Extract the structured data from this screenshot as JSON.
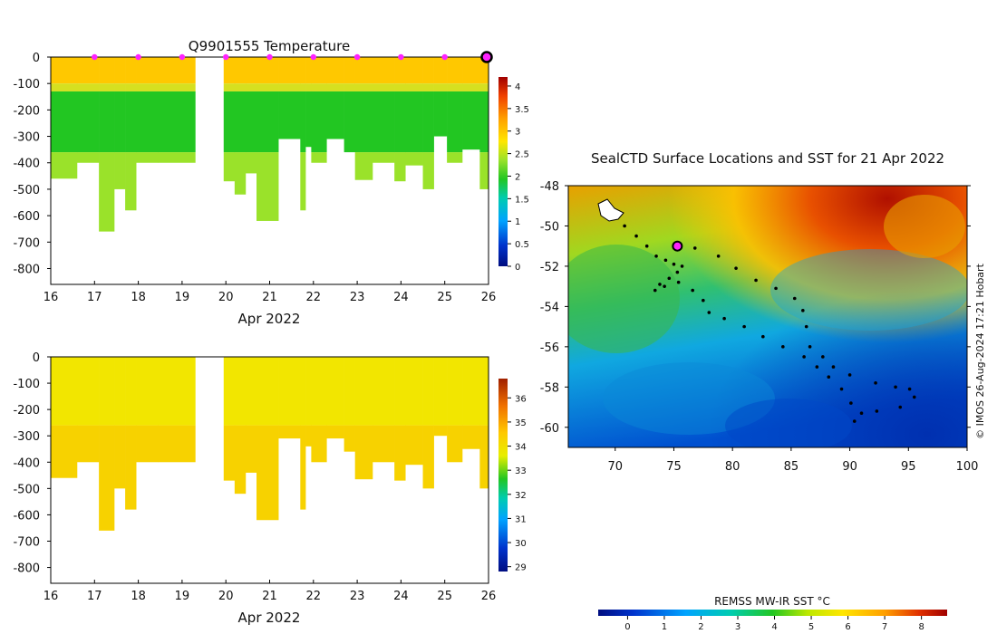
{
  "top_panel": {
    "title": "Q9901555  Temperature",
    "xlabel": "Apr 2022",
    "x_ticks": [
      "16",
      "17",
      "18",
      "19",
      "20",
      "21",
      "22",
      "23",
      "24",
      "25",
      "26"
    ],
    "y_ticks": [
      "0",
      "-100",
      "-200",
      "-300",
      "-400",
      "-500",
      "-600",
      "-700",
      "-800"
    ],
    "colorbar_ticks": [
      "4",
      "3.5",
      "3",
      "2.5",
      "2",
      "1.5",
      "1",
      "0.5",
      "0"
    ]
  },
  "bottom_panel": {
    "xlabel": "Apr 2022",
    "x_ticks": [
      "16",
      "17",
      "18",
      "19",
      "20",
      "21",
      "22",
      "23",
      "24",
      "25",
      "26"
    ],
    "y_ticks": [
      "0",
      "-100",
      "-200",
      "-300",
      "-400",
      "-500",
      "-600",
      "-700",
      "-800"
    ],
    "colorbar_ticks": [
      "36",
      "35",
      "34",
      "33",
      "32",
      "31",
      "30",
      "29"
    ]
  },
  "map_panel": {
    "title": "SealCTD Surface Locations and SST for 21 Apr 2022",
    "x_ticks": [
      "70",
      "75",
      "80",
      "85",
      "90",
      "95",
      "100"
    ],
    "y_ticks": [
      "-48",
      "-50",
      "-52",
      "-54",
      "-56",
      "-58",
      "-60"
    ],
    "side_text": "© IMOS 26-Aug-2024 17:21 Hobart",
    "colorbar_label": "REMSS MW-IR SST °C",
    "colorbar_ticks": [
      "0",
      "1",
      "2",
      "3",
      "4",
      "5",
      "6",
      "7",
      "8"
    ]
  },
  "colors": {
    "temp_surface": "#ffc800",
    "temp_mid": "#22c622",
    "temp_deep": "#9ae22a",
    "sal_main": "#f2e600",
    "sal_deep": "#f7d200",
    "marker": "#ff22ff"
  },
  "chart_data": [
    {
      "type": "heatmap",
      "title": "Q9901555  Temperature",
      "xlabel": "Apr 2022",
      "ylabel": "",
      "xlim": [
        16,
        26
      ],
      "ylim": [
        -860,
        0
      ],
      "colorbar": {
        "min": 0,
        "max": 4.2
      },
      "profiles": [
        {
          "t0": 16.0,
          "t1": 16.6,
          "maxdepth": 460
        },
        {
          "t0": 16.6,
          "t1": 17.1,
          "maxdepth": 400
        },
        {
          "t0": 17.1,
          "t1": 17.45,
          "maxdepth": 660
        },
        {
          "t0": 17.45,
          "t1": 17.7,
          "maxdepth": 500
        },
        {
          "t0": 17.7,
          "t1": 17.95,
          "maxdepth": 580
        },
        {
          "t0": 17.95,
          "t1": 18.45,
          "maxdepth": 400
        },
        {
          "t0": 18.45,
          "t1": 19.3,
          "maxdepth": 400
        },
        {
          "t0": 19.95,
          "t1": 20.2,
          "maxdepth": 470
        },
        {
          "t0": 20.2,
          "t1": 20.45,
          "maxdepth": 520
        },
        {
          "t0": 20.45,
          "t1": 20.7,
          "maxdepth": 440
        },
        {
          "t0": 20.7,
          "t1": 21.2,
          "maxdepth": 620
        },
        {
          "t0": 21.2,
          "t1": 21.7,
          "maxdepth": 310
        },
        {
          "t0": 21.7,
          "t1": 21.82,
          "maxdepth": 580
        },
        {
          "t0": 21.82,
          "t1": 21.95,
          "maxdepth": 340
        },
        {
          "t0": 21.95,
          "t1": 22.3,
          "maxdepth": 400
        },
        {
          "t0": 22.3,
          "t1": 22.7,
          "maxdepth": 310
        },
        {
          "t0": 22.7,
          "t1": 22.95,
          "maxdepth": 360
        },
        {
          "t0": 22.95,
          "t1": 23.35,
          "maxdepth": 465
        },
        {
          "t0": 23.35,
          "t1": 23.85,
          "maxdepth": 400
        },
        {
          "t0": 23.85,
          "t1": 24.1,
          "maxdepth": 470
        },
        {
          "t0": 24.1,
          "t1": 24.5,
          "maxdepth": 410
        },
        {
          "t0": 24.5,
          "t1": 24.75,
          "maxdepth": 500
        },
        {
          "t0": 24.75,
          "t1": 25.05,
          "maxdepth": 300
        },
        {
          "t0": 25.05,
          "t1": 25.4,
          "maxdepth": 400
        },
        {
          "t0": 25.4,
          "t1": 25.8,
          "maxdepth": 350
        },
        {
          "t0": 25.8,
          "t1": 26.0,
          "maxdepth": 500
        }
      ],
      "surface_markers_x": [
        17,
        18,
        19,
        20,
        21,
        22,
        23,
        24,
        25
      ],
      "latest_marker_x": 26
    },
    {
      "type": "heatmap",
      "title": "",
      "xlabel": "Apr 2022",
      "ylabel": "",
      "xlim": [
        16,
        26
      ],
      "ylim": [
        -860,
        0
      ],
      "colorbar": {
        "min": 28.8,
        "max": 36.8
      }
    },
    {
      "type": "scatter",
      "title": "SealCTD Surface Locations and SST for 21 Apr 2022",
      "xlim": [
        66,
        100
      ],
      "ylim": [
        -61,
        -48
      ],
      "track": [
        [
          70.8,
          -50.0
        ],
        [
          71.8,
          -50.5
        ],
        [
          72.7,
          -51.0
        ],
        [
          73.5,
          -51.5
        ],
        [
          74.3,
          -51.7
        ],
        [
          75.0,
          -51.9
        ],
        [
          75.7,
          -52.0
        ],
        [
          75.3,
          -52.3
        ],
        [
          74.6,
          -52.6
        ],
        [
          73.8,
          -52.9
        ],
        [
          73.4,
          -53.2
        ],
        [
          74.2,
          -53.0
        ],
        [
          75.4,
          -52.8
        ],
        [
          76.6,
          -53.2
        ],
        [
          77.5,
          -53.7
        ],
        [
          75.3,
          -51.1
        ],
        [
          76.8,
          -51.1
        ],
        [
          78.8,
          -51.5
        ],
        [
          80.3,
          -52.1
        ],
        [
          82.0,
          -52.7
        ],
        [
          83.7,
          -53.1
        ],
        [
          85.3,
          -53.6
        ],
        [
          86.0,
          -54.2
        ],
        [
          86.3,
          -55.0
        ],
        [
          86.6,
          -56.0
        ],
        [
          87.7,
          -56.5
        ],
        [
          88.6,
          -57.0
        ],
        [
          90.0,
          -57.4
        ],
        [
          92.2,
          -57.8
        ],
        [
          93.9,
          -58.0
        ],
        [
          95.1,
          -58.1
        ],
        [
          95.5,
          -58.5
        ],
        [
          94.3,
          -59.0
        ],
        [
          92.3,
          -59.2
        ],
        [
          91.0,
          -59.3
        ],
        [
          90.4,
          -59.7
        ],
        [
          90.1,
          -58.8
        ],
        [
          89.3,
          -58.1
        ],
        [
          88.2,
          -57.5
        ],
        [
          87.2,
          -57.0
        ],
        [
          86.1,
          -56.5
        ],
        [
          84.3,
          -56.0
        ],
        [
          82.6,
          -55.5
        ],
        [
          81.0,
          -55.0
        ],
        [
          79.3,
          -54.6
        ],
        [
          78.0,
          -54.3
        ]
      ],
      "current_position": [
        75.3,
        -51.0
      ],
      "sst_range": [
        -0.8,
        8.7
      ]
    }
  ]
}
